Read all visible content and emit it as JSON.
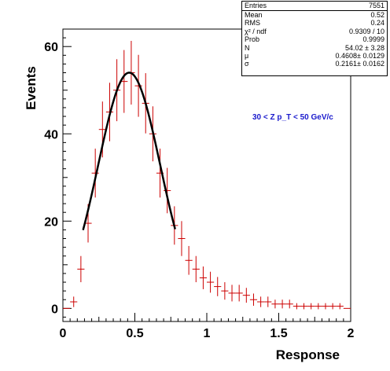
{
  "chart_data": {
    "type": "histogram",
    "xlabel": "Response",
    "ylabel": "Events",
    "xlim": [
      0,
      2
    ],
    "ylim": [
      -3,
      64
    ],
    "x_ticks": [
      "0",
      "0.5",
      "1",
      "1.5",
      "2"
    ],
    "y_ticks": [
      "0",
      "20",
      "40",
      "60"
    ],
    "bin_width": 0.05,
    "bin_centers": [
      0.025,
      0.075,
      0.125,
      0.175,
      0.225,
      0.275,
      0.325,
      0.375,
      0.425,
      0.475,
      0.525,
      0.575,
      0.625,
      0.675,
      0.725,
      0.775,
      0.825,
      0.875,
      0.925,
      0.975,
      1.025,
      1.075,
      1.125,
      1.175,
      1.225,
      1.275,
      1.325,
      1.375,
      1.425,
      1.475,
      1.525,
      1.575,
      1.625,
      1.675,
      1.725,
      1.775,
      1.825,
      1.875,
      1.925,
      1.975
    ],
    "values": [
      0,
      1.5,
      9,
      19.5,
      31,
      41,
      45,
      50,
      52,
      54,
      51,
      47,
      40,
      31,
      27,
      19,
      16,
      11,
      9,
      7,
      6,
      5,
      4,
      3.5,
      3.5,
      3,
      2,
      1.5,
      1.5,
      1,
      1,
      1,
      0.5,
      0.5,
      0.5,
      0.5,
      0.5,
      0.5,
      0.5,
      0
    ],
    "errors": [
      0,
      1.2,
      3,
      4.4,
      5.6,
      6.4,
      6.7,
      7.1,
      7.2,
      7.3,
      7.1,
      6.9,
      6.3,
      5.6,
      5.2,
      4.4,
      4,
      3.3,
      3,
      2.6,
      2.4,
      2.2,
      2,
      1.9,
      1.9,
      1.7,
      1.4,
      1.2,
      1.2,
      1,
      1,
      1,
      0.7,
      0.7,
      0.7,
      0.7,
      0.7,
      0.7,
      0.7,
      0
    ],
    "fit": {
      "function": "gaussian",
      "N": 54.02,
      "mu": 0.4608,
      "sigma": 0.2161,
      "range": [
        0.14,
        0.78
      ]
    },
    "stats_box": {
      "rows": [
        {
          "key": "Mean",
          "value": "0.52"
        },
        {
          "key": "RMS",
          "value": "0.24"
        },
        {
          "key": "χ² / ndf",
          "value": "0.9309 / 10"
        },
        {
          "key": "Prob",
          "value": "0.9999"
        },
        {
          "key": "N",
          "value": "54.02 ± 3.28"
        },
        {
          "key": "μ",
          "value": "0.4608± 0.0129"
        },
        {
          "key": "σ",
          "value": "0.2161± 0.0162"
        }
      ],
      "header": {
        "key": "Entries",
        "value": "7551"
      }
    },
    "annotation": "30 < Z p_T < 50 GeV/c",
    "colors": {
      "histogram": "#cc0000",
      "fit": "#000000",
      "annotation": "#1a1acc"
    }
  }
}
